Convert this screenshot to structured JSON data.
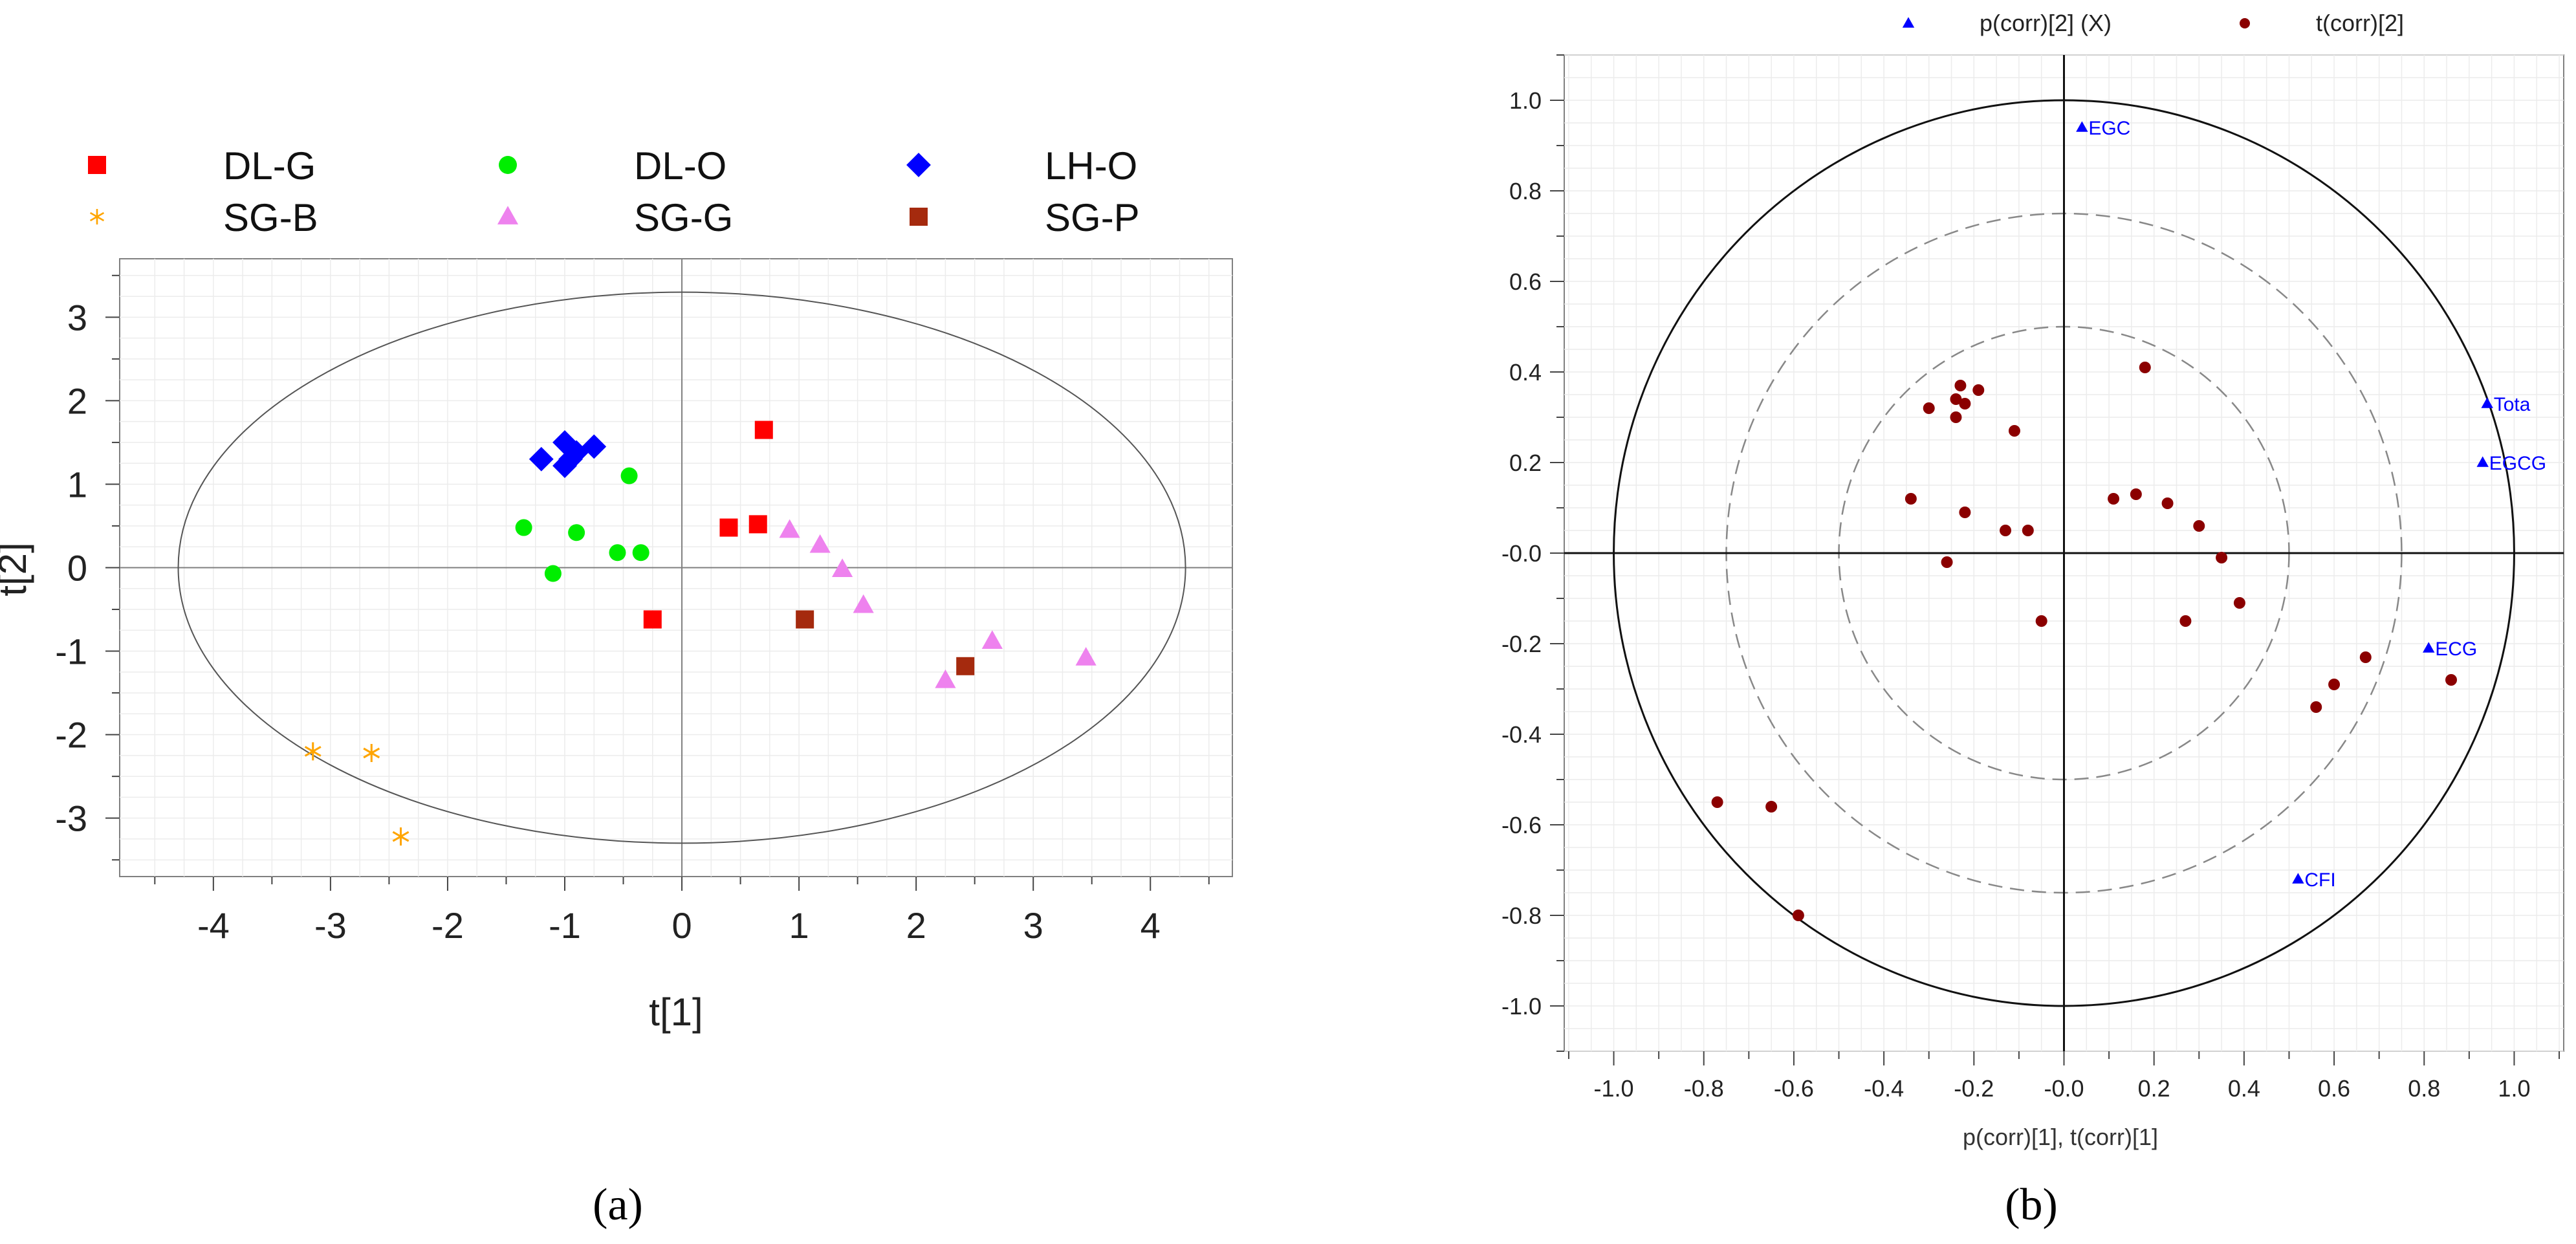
{
  "chart_data": [
    {
      "panel_label": "(a)",
      "type": "scatter",
      "xlabel": "t[1]",
      "ylabel": "t[2]",
      "xlim": [
        -4.8,
        4.7
      ],
      "ylim": [
        -3.7,
        3.7
      ],
      "xticks": [
        -4,
        -3,
        -2,
        -1,
        0,
        1,
        2,
        3,
        4
      ],
      "yticks": [
        -3,
        -2,
        -1,
        0,
        1,
        2,
        3
      ],
      "legend_position": "top",
      "ellipse": {
        "cx": 0,
        "cy": 0,
        "rx": 4.3,
        "ry": 3.3
      },
      "series": [
        {
          "name": "DL-G",
          "marker": "square",
          "color": "#ff0000",
          "x": [
            0.7,
            0.4,
            0.65,
            -0.25
          ],
          "y": [
            1.65,
            0.48,
            0.52,
            -0.62
          ]
        },
        {
          "name": "DL-O",
          "marker": "circle",
          "color": "#00ee00",
          "x": [
            -0.45,
            -1.35,
            -0.9,
            -0.55,
            -0.35,
            -1.1
          ],
          "y": [
            1.1,
            0.48,
            0.42,
            0.18,
            0.18,
            -0.07
          ]
        },
        {
          "name": "LH-O",
          "marker": "diamond",
          "color": "#0000ff",
          "x": [
            -1.2,
            -1.0,
            -0.9,
            -0.75,
            -1.0,
            -0.95
          ],
          "y": [
            1.3,
            1.5,
            1.38,
            1.45,
            1.22,
            1.3
          ]
        },
        {
          "name": "SG-B",
          "marker": "asterisk",
          "color": "#ffa500",
          "x": [
            -3.15,
            -2.65,
            -2.4
          ],
          "y": [
            -2.2,
            -2.22,
            -3.22
          ]
        },
        {
          "name": "SG-G",
          "marker": "triangle",
          "color": "#ee82ee",
          "x": [
            0.92,
            1.18,
            1.37,
            1.55,
            2.25,
            2.65,
            3.45
          ],
          "y": [
            0.45,
            0.27,
            -0.02,
            -0.45,
            -1.35,
            -0.88,
            -1.08
          ]
        },
        {
          "name": "SG-P",
          "marker": "square",
          "color": "#a52a0e",
          "x": [
            1.05,
            2.42
          ],
          "y": [
            -0.62,
            -1.18
          ]
        }
      ]
    },
    {
      "panel_label": "(b)",
      "type": "scatter",
      "xlabel": "p(corr)[1], t(corr)[1]",
      "xlim": [
        -1.11,
        1.11
      ],
      "ylim": [
        -1.1,
        1.1
      ],
      "xticks": [
        "-1.0",
        "-0.8",
        "-0.6",
        "-0.4",
        "-0.2",
        "-0.0",
        "0.2",
        "0.4",
        "0.6",
        "0.8",
        "1.0"
      ],
      "yticks": [
        "-1.0",
        "-0.8",
        "-0.6",
        "-0.4",
        "-0.2",
        "-0.0",
        "0.2",
        "0.4",
        "0.6",
        "0.8",
        "1.0"
      ],
      "legend_position": "top",
      "circles": [
        {
          "r": 1.0,
          "style": "solid"
        },
        {
          "r": 0.75,
          "style": "dashed"
        },
        {
          "r": 0.5,
          "style": "dashed"
        }
      ],
      "series": [
        {
          "name": "p(corr)[2] (X)",
          "marker": "triangle",
          "color": "#0000ff",
          "points": [
            {
              "x": 0.04,
              "y": 0.94,
              "label": "EGC"
            },
            {
              "x": 0.94,
              "y": 0.33,
              "label": "Tota"
            },
            {
              "x": 0.93,
              "y": 0.2,
              "label": "EGCG"
            },
            {
              "x": 0.81,
              "y": -0.21,
              "label": "ECG"
            },
            {
              "x": 0.52,
              "y": -0.72,
              "label": "CFI"
            }
          ]
        },
        {
          "name": "t(corr)[2]",
          "marker": "circle",
          "color": "#8b0000",
          "x": [
            0.18,
            -0.3,
            -0.23,
            -0.24,
            -0.22,
            -0.19,
            -0.24,
            -0.11,
            -0.34,
            -0.22,
            -0.13,
            -0.08,
            0.11,
            0.16,
            0.23,
            0.3,
            0.35,
            0.39,
            0.27,
            -0.26,
            -0.05,
            0.67,
            0.86,
            0.6,
            0.56,
            -0.77,
            -0.65,
            -0.59
          ],
          "y": [
            0.41,
            0.32,
            0.37,
            0.34,
            0.33,
            0.36,
            0.3,
            0.27,
            0.12,
            0.09,
            0.05,
            0.05,
            0.12,
            0.13,
            0.11,
            0.06,
            -0.01,
            -0.11,
            -0.15,
            -0.02,
            -0.15,
            -0.23,
            -0.28,
            -0.29,
            -0.34,
            -0.55,
            -0.56,
            -0.8
          ]
        }
      ]
    }
  ]
}
